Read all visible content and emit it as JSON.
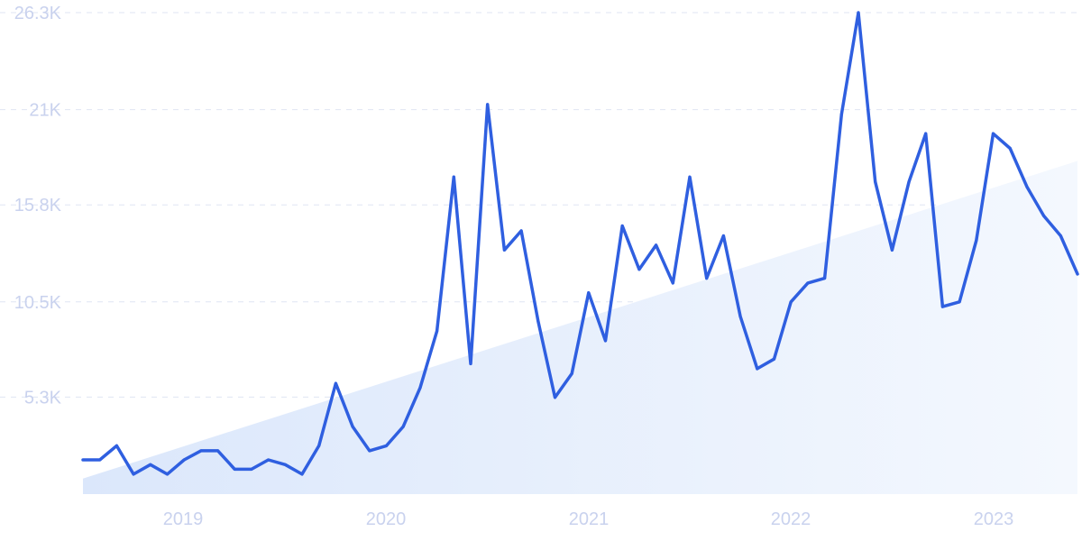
{
  "chart_data": {
    "type": "line",
    "title": "",
    "xlabel": "",
    "ylabel": "",
    "x_tick_labels": [
      "2019",
      "2020",
      "2021",
      "2022",
      "2023"
    ],
    "y_tick_labels": [
      "5.3K",
      "10.5K",
      "15.8K",
      "21K",
      "26.3K"
    ],
    "y_tick_values": [
      5300,
      10500,
      15800,
      21000,
      26300
    ],
    "ylim": [
      0,
      26300
    ],
    "grid": true,
    "colors": {
      "line": "#2f5fe0",
      "trend_fill": "#e3ecfb",
      "tick_text": "#c9d2ee",
      "grid": "#dfe5f3"
    },
    "series": [
      {
        "values": [
          1870,
          1870,
          2640,
          1090,
          1610,
          1090,
          1870,
          2370,
          2370,
          1360,
          1360,
          1870,
          1610,
          1090,
          2640,
          6050,
          3690,
          2370,
          2640,
          3690,
          5800,
          8910,
          17320,
          7120,
          21280,
          13330,
          14380,
          9450,
          5280,
          6580,
          11000,
          8380,
          14650,
          12280,
          13600,
          11530,
          17320,
          11790,
          14110,
          9700,
          6850,
          7380,
          10500,
          11530,
          11790,
          20740,
          26300,
          17060,
          13330,
          17060,
          19690,
          10240,
          10500,
          13860,
          19690,
          18890,
          16790,
          15200,
          14110,
          12020
        ]
      }
    ],
    "trend": {
      "start": 850,
      "end": 18200
    }
  }
}
